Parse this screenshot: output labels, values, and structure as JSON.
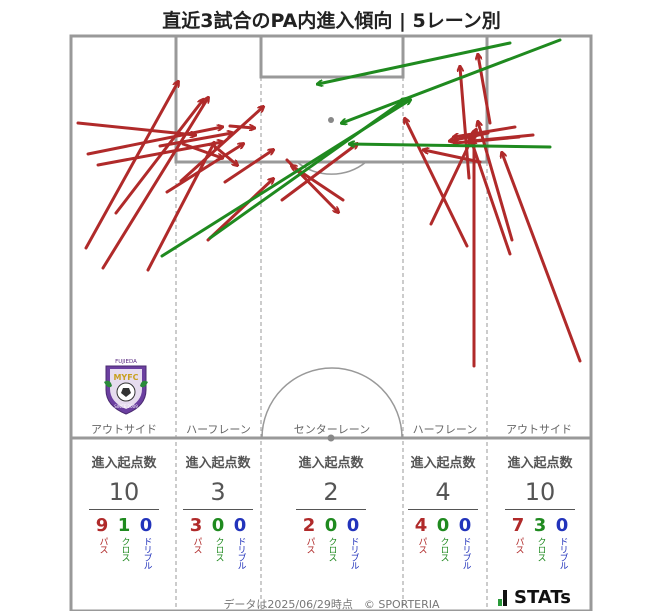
{
  "title": "直近3試合のPA内進入傾向 | 5レーン別",
  "lanes": [
    {
      "label": "アウトサイド",
      "stat_head": "進入起点数",
      "total": "10",
      "pass": "9",
      "cross": "1",
      "dribble": "0"
    },
    {
      "label": "ハーフレーン",
      "stat_head": "進入起点数",
      "total": "3",
      "pass": "3",
      "cross": "0",
      "dribble": "0"
    },
    {
      "label": "センターレーン",
      "stat_head": "進入起点数",
      "total": "2",
      "pass": "2",
      "cross": "0",
      "dribble": "0"
    },
    {
      "label": "ハーフレーン",
      "stat_head": "進入起点数",
      "total": "4",
      "pass": "4",
      "cross": "0",
      "dribble": "0"
    },
    {
      "label": "アウトサイド",
      "stat_head": "進入起点数",
      "total": "10",
      "pass": "7",
      "cross": "3",
      "dribble": "0"
    }
  ],
  "legend": {
    "pass": "パス",
    "cross": "クロス",
    "dribble": "ドリブル"
  },
  "colors": {
    "pass": "#b02a2a",
    "cross": "#1f8a1f",
    "dribble": "#2233bb",
    "pitch_line": "#999999"
  },
  "footer": "データは2025/06/29時点　© SPORTERIA",
  "brand": "STATs",
  "logo": {
    "text_top": "FUJIEDA",
    "text_mid": "MYFC",
    "text_bottom": "SINCE 2009"
  },
  "arrows": {
    "pass": [
      [
        86,
        248,
        178,
        82
      ],
      [
        103,
        268,
        208,
        98
      ],
      [
        148,
        270,
        214,
        143
      ],
      [
        78,
        123,
        195,
        135
      ],
      [
        88,
        154,
        222,
        127
      ],
      [
        98,
        165,
        222,
        142
      ],
      [
        160,
        146,
        232,
        133
      ],
      [
        167,
        192,
        243,
        144
      ],
      [
        181,
        181,
        263,
        107
      ],
      [
        116,
        213,
        203,
        100
      ],
      [
        208,
        240,
        273,
        179
      ],
      [
        225,
        182,
        273,
        150
      ],
      [
        230,
        126,
        254,
        128
      ],
      [
        183,
        144,
        222,
        158
      ],
      [
        212,
        144,
        237,
        165
      ],
      [
        287,
        160,
        338,
        212
      ],
      [
        282,
        200,
        357,
        144
      ],
      [
        343,
        200,
        292,
        166
      ],
      [
        510,
        254,
        470,
        137
      ],
      [
        474,
        366,
        474,
        132
      ],
      [
        580,
        361,
        502,
        153
      ],
      [
        467,
        246,
        405,
        119
      ],
      [
        431,
        224,
        476,
        130
      ],
      [
        512,
        240,
        478,
        122
      ],
      [
        469,
        178,
        460,
        67
      ],
      [
        480,
        162,
        424,
        150
      ],
      [
        533,
        135,
        472,
        141
      ],
      [
        519,
        137,
        455,
        143
      ],
      [
        488,
        133,
        450,
        141
      ],
      [
        515,
        127,
        454,
        137
      ],
      [
        490,
        123,
        478,
        55
      ]
    ],
    "cross": [
      [
        162,
        256,
        410,
        100
      ],
      [
        210,
        238,
        406,
        99
      ],
      [
        510,
        43,
        318,
        84
      ],
      [
        560,
        40,
        342,
        123
      ],
      [
        550,
        147,
        350,
        144
      ]
    ],
    "dribble": []
  }
}
